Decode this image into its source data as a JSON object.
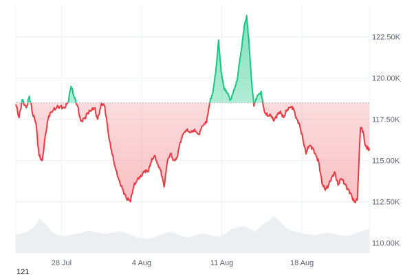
{
  "chart_data": {
    "type": "area",
    "title": "",
    "xlabel": "",
    "ylabel": "",
    "baseline": 118500,
    "colors": {
      "up_line": "#16c784",
      "down_line": "#ea3943",
      "baseline_line": "#b9bec7",
      "volume_fill": "#eceef2",
      "grid": "#eef0f3"
    },
    "x_ticks": [
      {
        "x": 29,
        "label": "28 Jul"
      },
      {
        "x": 39,
        "label": "4 Aug"
      },
      {
        "x": 49,
        "label": "11 Aug"
      },
      {
        "x": 59,
        "label": "18 Aug"
      }
    ],
    "y_ticks": [
      {
        "y": 110000,
        "label": "110.00K"
      },
      {
        "y": 112500,
        "label": "112.50K"
      },
      {
        "y": 115000,
        "label": "115.00K"
      },
      {
        "y": 117500,
        "label": "117.50K"
      },
      {
        "y": 120000,
        "label": "120.00K"
      },
      {
        "y": 122500,
        "label": "122.50K"
      }
    ],
    "ylim": [
      109400,
      124400
    ],
    "xlim": [
      23.3,
      67.4
    ],
    "series": [
      {
        "values": [
          [
            23.3,
            118400
          ],
          [
            23.7,
            117600
          ],
          [
            24.1,
            118700
          ],
          [
            24.6,
            118200
          ],
          [
            25.0,
            118900
          ],
          [
            25.4,
            117800
          ],
          [
            25.8,
            117300
          ],
          [
            26.2,
            115300
          ],
          [
            26.6,
            115000
          ],
          [
            27.0,
            116600
          ],
          [
            27.4,
            117700
          ],
          [
            27.9,
            118000
          ],
          [
            28.4,
            118200
          ],
          [
            28.9,
            118300
          ],
          [
            29.3,
            118200
          ],
          [
            29.8,
            118500
          ],
          [
            30.2,
            119500
          ],
          [
            30.6,
            118800
          ],
          [
            31.0,
            118300
          ],
          [
            31.4,
            117400
          ],
          [
            31.9,
            117600
          ],
          [
            32.3,
            117900
          ],
          [
            32.7,
            118000
          ],
          [
            33.1,
            118200
          ],
          [
            33.5,
            117500
          ],
          [
            34.0,
            118500
          ],
          [
            34.4,
            118300
          ],
          [
            34.9,
            116400
          ],
          [
            35.3,
            115400
          ],
          [
            35.8,
            114400
          ],
          [
            36.2,
            113800
          ],
          [
            36.7,
            113200
          ],
          [
            37.1,
            112700
          ],
          [
            37.6,
            112500
          ],
          [
            38.0,
            113400
          ],
          [
            38.5,
            113900
          ],
          [
            38.9,
            114100
          ],
          [
            39.4,
            114400
          ],
          [
            39.8,
            114300
          ],
          [
            40.2,
            114900
          ],
          [
            40.6,
            115300
          ],
          [
            41.0,
            114800
          ],
          [
            41.4,
            114400
          ],
          [
            41.8,
            113400
          ],
          [
            42.2,
            114900
          ],
          [
            42.6,
            115400
          ],
          [
            43.0,
            115000
          ],
          [
            43.4,
            115200
          ],
          [
            43.8,
            116100
          ],
          [
            44.2,
            116600
          ],
          [
            44.6,
            116800
          ],
          [
            45.1,
            116700
          ],
          [
            45.6,
            116900
          ],
          [
            46.1,
            116600
          ],
          [
            46.6,
            117100
          ],
          [
            47.1,
            117300
          ],
          [
            47.5,
            118500
          ],
          [
            47.9,
            119200
          ],
          [
            48.3,
            120700
          ],
          [
            48.6,
            122300
          ],
          [
            48.9,
            120400
          ],
          [
            49.3,
            119300
          ],
          [
            49.7,
            119100
          ],
          [
            50.1,
            118700
          ],
          [
            50.5,
            119300
          ],
          [
            50.9,
            119800
          ],
          [
            51.2,
            120900
          ],
          [
            51.5,
            121900
          ],
          [
            51.8,
            123200
          ],
          [
            52.1,
            123800
          ],
          [
            52.4,
            122100
          ],
          [
            52.7,
            119800
          ],
          [
            53.0,
            118300
          ],
          [
            53.4,
            118900
          ],
          [
            53.9,
            119200
          ],
          [
            54.3,
            118000
          ],
          [
            54.7,
            117700
          ],
          [
            55.1,
            117700
          ],
          [
            55.5,
            117400
          ],
          [
            55.9,
            117800
          ],
          [
            56.3,
            118000
          ],
          [
            56.7,
            117600
          ],
          [
            57.1,
            118000
          ],
          [
            57.5,
            118200
          ],
          [
            57.9,
            118200
          ],
          [
            58.3,
            117600
          ],
          [
            58.7,
            117200
          ],
          [
            59.1,
            116300
          ],
          [
            59.5,
            115400
          ],
          [
            59.9,
            115900
          ],
          [
            60.3,
            115800
          ],
          [
            60.7,
            115400
          ],
          [
            61.1,
            114900
          ],
          [
            61.5,
            113600
          ],
          [
            61.9,
            113200
          ],
          [
            62.3,
            113500
          ],
          [
            62.7,
            114000
          ],
          [
            63.1,
            114300
          ],
          [
            63.5,
            113500
          ],
          [
            63.9,
            113900
          ],
          [
            64.3,
            113600
          ],
          [
            64.7,
            113300
          ],
          [
            65.1,
            113000
          ],
          [
            65.5,
            112500
          ],
          [
            65.9,
            112600
          ],
          [
            66.3,
            117000
          ],
          [
            66.6,
            116800
          ],
          [
            66.9,
            115900
          ],
          [
            67.2,
            115800
          ],
          [
            67.4,
            115600
          ]
        ]
      }
    ],
    "volume": [
      0.48,
      0.5,
      0.56,
      0.66,
      0.9,
      0.74,
      0.55,
      0.46,
      0.44,
      0.46,
      0.5,
      0.52,
      0.58,
      0.55,
      0.52,
      0.5,
      0.52,
      0.56,
      0.54,
      0.48,
      0.42,
      0.38,
      0.36,
      0.4,
      0.46,
      0.52,
      0.56,
      0.48,
      0.42,
      0.4,
      0.46,
      0.5,
      0.48,
      0.44,
      0.42,
      0.5,
      0.62,
      0.66,
      0.7,
      0.62,
      0.56,
      0.72,
      0.8,
      0.95,
      0.84,
      0.66,
      0.58,
      0.54,
      0.5,
      0.48,
      0.46,
      0.5,
      0.52,
      0.5,
      0.46,
      0.44,
      0.46,
      0.52,
      0.58,
      0.62
    ],
    "corner_label": "121"
  }
}
